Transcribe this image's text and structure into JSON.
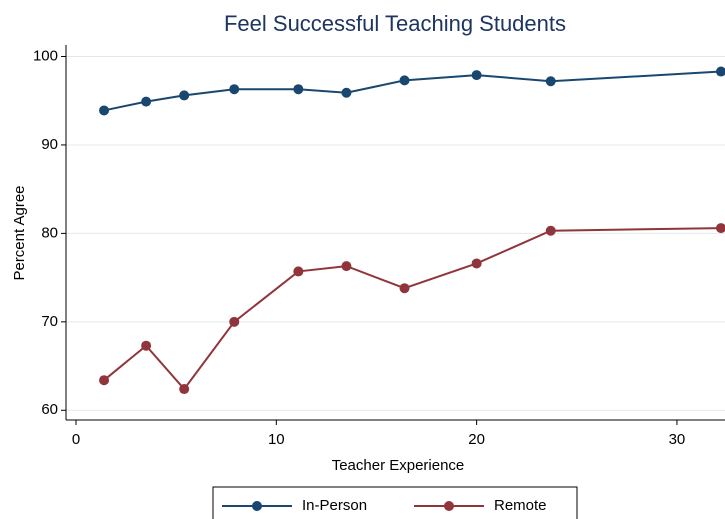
{
  "chart_data": {
    "type": "line",
    "title": "Feel Successful Teaching Students",
    "x_label": "Teacher Experience",
    "y_label": "Percent Agree",
    "xlim": [
      -0.5,
      32.4
    ],
    "xticks": [
      0,
      10,
      20,
      30
    ],
    "ylim": [
      58.9,
      101.3
    ],
    "yticks": [
      60,
      70,
      80,
      90,
      100
    ],
    "grid": true,
    "legend": "bottom",
    "x": [
      1.4,
      3.5,
      5.4,
      7.9,
      11.1,
      13.5,
      16.4,
      20.0,
      23.7,
      32.2
    ],
    "series": [
      {
        "name": "In-Person",
        "color": "#1a476f",
        "values": [
          93.9,
          94.9,
          95.6,
          96.3,
          96.3,
          95.9,
          97.3,
          97.9,
          97.2,
          98.3
        ]
      },
      {
        "name": "Remote",
        "color": "#90353b",
        "values": [
          63.4,
          67.3,
          62.4,
          70.0,
          75.7,
          76.3,
          73.8,
          76.6,
          80.3,
          80.6
        ]
      }
    ]
  }
}
